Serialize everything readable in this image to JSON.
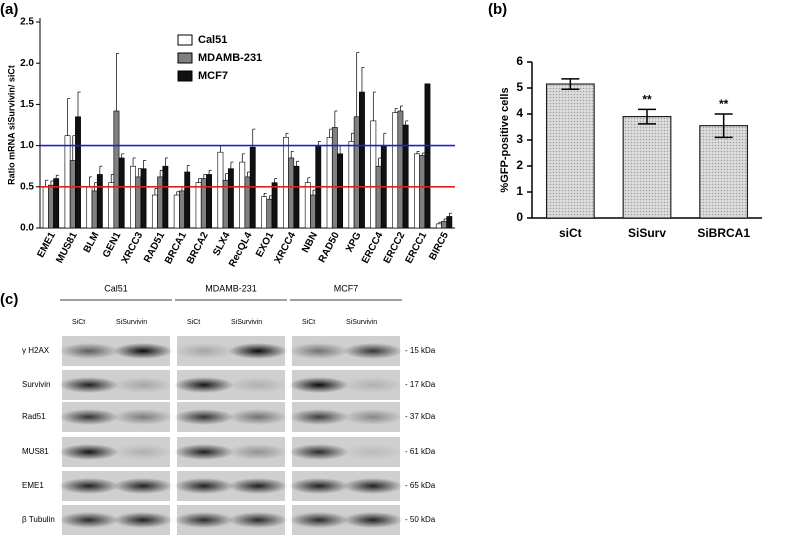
{
  "chart_data": [
    {
      "type": "bar",
      "panel_label": "(a)",
      "y_label": "Ratio mRNA siSurvivin/ siCt",
      "categories": [
        "EME1",
        "MUS81",
        "BLM",
        "GEN1",
        "XRCC3",
        "RAD51",
        "BRCA1",
        "BRCA2",
        "SLX4",
        "RecQL4",
        "EXO1",
        "XRCC4",
        "NBN",
        "RAD50",
        "XPG",
        "ERCC4",
        "ERCC2",
        "ERCC1",
        "BIRC5"
      ],
      "series": [
        {
          "name": "Cal51",
          "color": "#ffffff",
          "values": [
            0.5,
            1.12,
            0.5,
            0.55,
            0.75,
            0.4,
            0.4,
            0.55,
            0.92,
            0.8,
            0.38,
            1.1,
            0.55,
            1.1,
            1.05,
            1.3,
            1.4,
            0.9,
            0.05
          ],
          "errors": [
            0.08,
            0.45,
            0.12,
            0.1,
            0.1,
            0.08,
            0.04,
            0.05,
            0.08,
            0.1,
            0.04,
            0.05,
            0.06,
            0.1,
            0.1,
            0.35,
            0.05,
            0.03,
            0.02
          ]
        },
        {
          "name": "MDAMB-231",
          "color": "#808080",
          "values": [
            0.52,
            0.82,
            0.45,
            1.42,
            0.62,
            0.62,
            0.45,
            0.6,
            0.58,
            0.62,
            0.35,
            0.85,
            0.4,
            1.22,
            1.35,
            0.75,
            1.42,
            0.88,
            0.08
          ],
          "errors": [
            0.05,
            0.3,
            0.1,
            0.7,
            0.1,
            0.08,
            0.05,
            0.05,
            0.08,
            0.06,
            0.04,
            0.08,
            0.06,
            0.2,
            0.78,
            0.1,
            0.06,
            0.03,
            0.03
          ]
        },
        {
          "name": "MCF7",
          "color": "#111111",
          "values": [
            0.6,
            1.35,
            0.65,
            0.85,
            0.72,
            0.75,
            0.68,
            0.65,
            0.72,
            0.98,
            0.55,
            0.75,
            1.0,
            0.9,
            1.65,
            1.0,
            1.25,
            1.75,
            0.14
          ],
          "errors": [
            0.04,
            0.3,
            0.1,
            0.05,
            0.1,
            0.1,
            0.08,
            0.05,
            0.08,
            0.22,
            0.05,
            0.06,
            0.05,
            0.1,
            0.3,
            0.15,
            0.05,
            0.0,
            0.04
          ]
        }
      ],
      "ylim": [
        0,
        2.5
      ],
      "yticks": [
        {
          "value": 0,
          "label": "0.0"
        },
        0.5,
        {
          "value": 1,
          "label": "1.0"
        },
        1.5,
        {
          "value": 2,
          "label": "2.0"
        },
        2.5
      ],
      "reference_lines": [
        {
          "value": 1,
          "color": "#2020d0"
        },
        {
          "value": 0.5,
          "color": "#e02020"
        }
      ]
    },
    {
      "type": "bar",
      "panel_label": "(b)",
      "y_label": "%GFP-positive cells",
      "categories": [
        "siCt",
        "SiSurv",
        "SiBRCA1"
      ],
      "values": [
        5.15,
        3.9,
        3.55
      ],
      "errors": [
        0.2,
        0.28,
        0.45
      ],
      "significance": [
        null,
        "**",
        "**"
      ],
      "color": "#cfcfcf",
      "ylim": [
        0,
        6
      ],
      "yticks": [
        0,
        1,
        2,
        3,
        4,
        5,
        6
      ]
    }
  ],
  "blot": {
    "panel_label": "(c)",
    "cell_lines": [
      "Cal51",
      "MDAMB-231",
      "MCF7"
    ],
    "conditions": [
      "SiCt",
      "SiSurvivin"
    ],
    "rows": [
      {
        "protein": "γ H2AX",
        "size": "- 15 kDa"
      },
      {
        "protein": "Survivin",
        "size": "- 17 kDa"
      },
      {
        "protein": "Rad51",
        "size": "- 37 kDa"
      },
      {
        "protein": "MUS81",
        "size": "- 61 kDa"
      },
      {
        "protein": "EME1",
        "size": "- 65 kDa"
      },
      {
        "protein": "β Tubulin",
        "size": "- 50 kDa"
      }
    ]
  }
}
